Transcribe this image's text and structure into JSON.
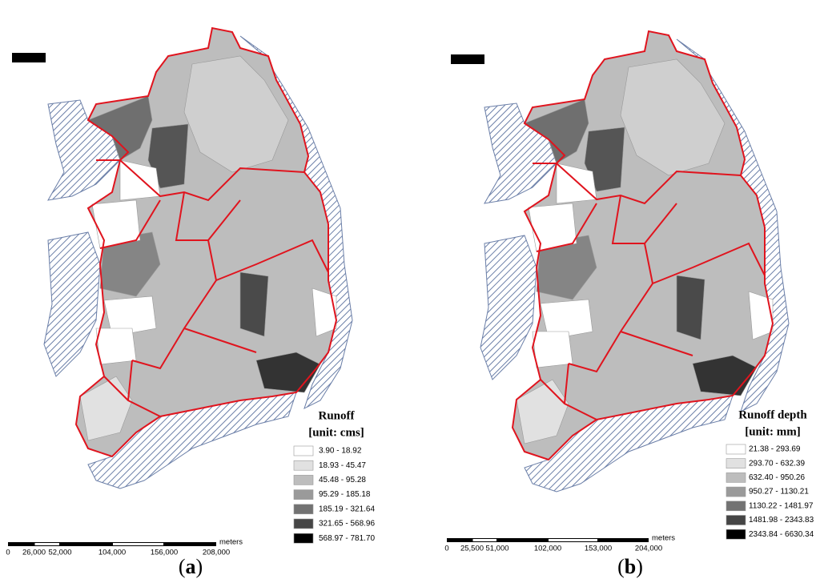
{
  "panels": [
    {
      "legend": {
        "title": "Runoff",
        "unit": "[unit: cms]",
        "items": [
          {
            "label": "3.90 - 18.92",
            "color": "#ffffff"
          },
          {
            "label": "18.93 - 45.47",
            "color": "#e1e1e1"
          },
          {
            "label": "45.48 - 95.28",
            "color": "#bdbdbd"
          },
          {
            "label": "95.29 - 185.18",
            "color": "#9a9a9a"
          },
          {
            "label": "185.19 - 321.64",
            "color": "#727272"
          },
          {
            "label": "321.65 - 568.96",
            "color": "#454545"
          },
          {
            "label": "568.97 - 781.70",
            "color": "#000000"
          }
        ]
      },
      "scale": {
        "unit": "meters",
        "labels": [
          "0",
          "26,000",
          "52,000",
          "104,000",
          "156,000",
          "208,000"
        ]
      },
      "caption": {
        "open": "(",
        "letter": "a",
        "close": ")"
      }
    },
    {
      "legend": {
        "title": "Runoff depth",
        "unit": "[unit: mm]",
        "items": [
          {
            "label": "21.38 - 293.69",
            "color": "#ffffff"
          },
          {
            "label": "293.70 - 632.39",
            "color": "#e1e1e1"
          },
          {
            "label": "632.40 - 950.26",
            "color": "#bdbdbd"
          },
          {
            "label": "950.27 - 1130.21",
            "color": "#9a9a9a"
          },
          {
            "label": "1130.22 - 1481.97",
            "color": "#727272"
          },
          {
            "label": "1481.98 - 2343.83",
            "color": "#454545"
          },
          {
            "label": "2343.84 - 6630.34",
            "color": "#000000"
          }
        ]
      },
      "scale": {
        "unit": "meters",
        "labels": [
          "0",
          "25,500",
          "51,000",
          "102,000",
          "153,000",
          "204,000"
        ]
      },
      "caption": {
        "open": "(",
        "letter": "b",
        "close": ")"
      }
    }
  ]
}
